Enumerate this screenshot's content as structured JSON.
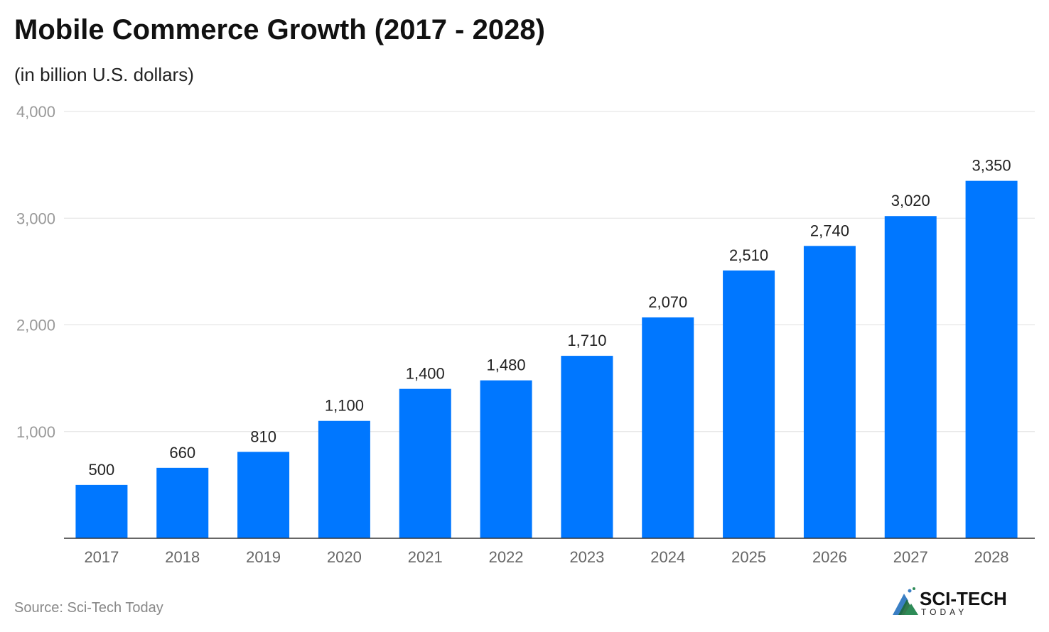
{
  "title": "Mobile Commerce Growth (2017 - 2028)",
  "subtitle": "(in billion U.S. dollars)",
  "source": "Source: Sci-Tech Today",
  "logo": {
    "name": "SCI-TECH",
    "tagline": "TODAY"
  },
  "colors": {
    "bar": "#0077ff",
    "grid": "#e0e0e0",
    "axis": "#333333",
    "tick": "#999999",
    "label": "#222222"
  },
  "chart_data": {
    "type": "bar",
    "title": "Mobile Commerce Growth (2017 - 2028)",
    "subtitle": "(in billion U.S. dollars)",
    "categories": [
      "2017",
      "2018",
      "2019",
      "2020",
      "2021",
      "2022",
      "2023",
      "2024",
      "2025",
      "2026",
      "2027",
      "2028"
    ],
    "values": [
      500,
      660,
      810,
      1100,
      1400,
      1480,
      1710,
      2070,
      2510,
      2740,
      3020,
      3350
    ],
    "value_labels": [
      "500",
      "660",
      "810",
      "1,100",
      "1,400",
      "1,480",
      "1,710",
      "2,070",
      "2,510",
      "2,740",
      "3,020",
      "3,350"
    ],
    "ylim": [
      0,
      4000
    ],
    "yticks": [
      1000,
      2000,
      3000,
      4000
    ],
    "ytick_labels": [
      "1,000",
      "2,000",
      "3,000",
      "4,000"
    ],
    "grid": true,
    "legend": "none"
  }
}
